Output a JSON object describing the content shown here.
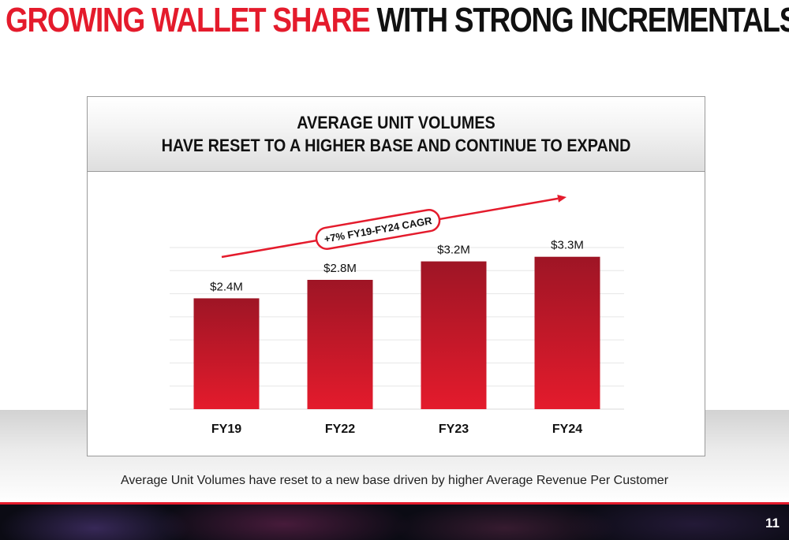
{
  "headline": {
    "part1": "GROWING WALLET SHARE",
    "part2": "WITH STRONG INCREMENTALS"
  },
  "panel": {
    "title_line1": "AVERAGE UNIT VOLUMES",
    "title_line2": "HAVE RESET TO A HIGHER BASE AND CONTINUE TO EXPAND"
  },
  "cagr_label": "+7% FY19-FY24 CAGR",
  "caption": "Average Unit Volumes have reset to a new base driven by higher Average Revenue Per Customer",
  "page_number": "11",
  "colors": {
    "brand_red": "#e41b2c",
    "bar_top": "#9e1525",
    "bar_bottom": "#e41b2c"
  },
  "chart_data": {
    "type": "bar",
    "categories": [
      "FY19",
      "FY22",
      "FY23",
      "FY24"
    ],
    "values": [
      2.4,
      2.8,
      3.2,
      3.3
    ],
    "data_labels": [
      "$2.4M",
      "$2.8M",
      "$3.2M",
      "$3.3M"
    ],
    "unit": "$M",
    "title": "AVERAGE UNIT VOLUMES HAVE RESET TO A HIGHER BASE AND CONTINUE TO EXPAND",
    "xlabel": "",
    "ylabel": "",
    "ylim": [
      0,
      3.5
    ],
    "grid": true,
    "annotation": "+7% FY19-FY24 CAGR"
  }
}
